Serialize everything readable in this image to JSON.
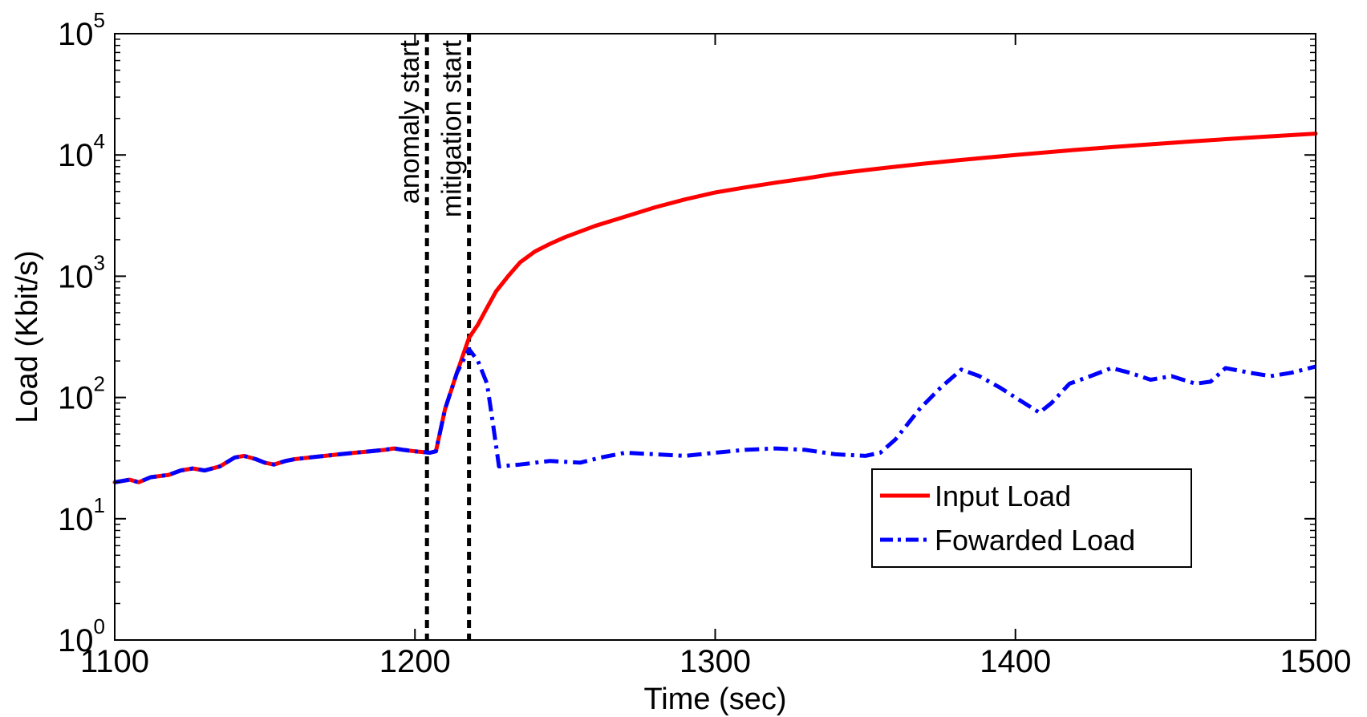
{
  "chart_data": {
    "type": "line",
    "xlabel": "Time (sec)",
    "ylabel": "Load (Kbit/s)",
    "xlim": [
      1100,
      1500
    ],
    "ylim": [
      1,
      100000
    ],
    "yscale": "log",
    "grid": false,
    "legend_position": "lower-right",
    "x_ticks": [
      1100,
      1200,
      1300,
      1400,
      1500
    ],
    "x_tick_labels": [
      "1100",
      "1200",
      "1300",
      "1400",
      "1500"
    ],
    "y_ticks": [
      1,
      10,
      100,
      1000,
      10000,
      100000
    ],
    "y_tick_labels": [
      {
        "base": "10",
        "exp": "0"
      },
      {
        "base": "10",
        "exp": "1"
      },
      {
        "base": "10",
        "exp": "2"
      },
      {
        "base": "10",
        "exp": "3"
      },
      {
        "base": "10",
        "exp": "4"
      },
      {
        "base": "10",
        "exp": "5"
      }
    ],
    "annotations": [
      {
        "label": "anomaly start",
        "x": 1204
      },
      {
        "label": "mitigation start",
        "x": 1218
      }
    ],
    "series": [
      {
        "name": "Input Load",
        "color": "#ff0000",
        "style": "solid",
        "points": [
          [
            1100,
            20
          ],
          [
            1105,
            21
          ],
          [
            1108,
            20
          ],
          [
            1112,
            22
          ],
          [
            1118,
            23
          ],
          [
            1122,
            25
          ],
          [
            1126,
            26
          ],
          [
            1130,
            25
          ],
          [
            1135,
            27
          ],
          [
            1140,
            32
          ],
          [
            1143,
            33
          ],
          [
            1147,
            31
          ],
          [
            1150,
            29
          ],
          [
            1153,
            28
          ],
          [
            1157,
            30
          ],
          [
            1160,
            31
          ],
          [
            1165,
            32
          ],
          [
            1170,
            33
          ],
          [
            1175,
            34
          ],
          [
            1180,
            35
          ],
          [
            1185,
            36
          ],
          [
            1190,
            37
          ],
          [
            1193,
            38
          ],
          [
            1196,
            37
          ],
          [
            1200,
            36
          ],
          [
            1205,
            35
          ],
          [
            1207,
            36
          ],
          [
            1210,
            80
          ],
          [
            1214,
            160
          ],
          [
            1218,
            310
          ],
          [
            1221,
            400
          ],
          [
            1224,
            550
          ],
          [
            1227,
            750
          ],
          [
            1231,
            1000
          ],
          [
            1235,
            1300
          ],
          [
            1240,
            1600
          ],
          [
            1245,
            1850
          ],
          [
            1250,
            2100
          ],
          [
            1260,
            2600
          ],
          [
            1270,
            3100
          ],
          [
            1280,
            3700
          ],
          [
            1290,
            4300
          ],
          [
            1300,
            4900
          ],
          [
            1310,
            5400
          ],
          [
            1320,
            5900
          ],
          [
            1330,
            6400
          ],
          [
            1340,
            7000
          ],
          [
            1350,
            7500
          ],
          [
            1360,
            8000
          ],
          [
            1370,
            8500
          ],
          [
            1380,
            9000
          ],
          [
            1390,
            9500
          ],
          [
            1400,
            10000
          ],
          [
            1420,
            11000
          ],
          [
            1440,
            12000
          ],
          [
            1460,
            13000
          ],
          [
            1480,
            14000
          ],
          [
            1500,
            15000
          ]
        ]
      },
      {
        "name": "Fowarded Load",
        "color": "#0000ff",
        "style": "dashdot",
        "points": [
          [
            1100,
            20
          ],
          [
            1105,
            21
          ],
          [
            1108,
            20
          ],
          [
            1112,
            22
          ],
          [
            1118,
            23
          ],
          [
            1122,
            25
          ],
          [
            1126,
            26
          ],
          [
            1130,
            25
          ],
          [
            1135,
            27
          ],
          [
            1140,
            32
          ],
          [
            1143,
            33
          ],
          [
            1147,
            31
          ],
          [
            1150,
            29
          ],
          [
            1153,
            28
          ],
          [
            1157,
            30
          ],
          [
            1160,
            31
          ],
          [
            1165,
            32
          ],
          [
            1170,
            33
          ],
          [
            1175,
            34
          ],
          [
            1180,
            35
          ],
          [
            1185,
            36
          ],
          [
            1190,
            37
          ],
          [
            1193,
            38
          ],
          [
            1196,
            37
          ],
          [
            1200,
            36
          ],
          [
            1205,
            35
          ],
          [
            1207,
            36
          ],
          [
            1210,
            80
          ],
          [
            1214,
            160
          ],
          [
            1218,
            250
          ],
          [
            1221,
            200
          ],
          [
            1224,
            130
          ],
          [
            1226,
            60
          ],
          [
            1228,
            27
          ],
          [
            1235,
            28
          ],
          [
            1245,
            30
          ],
          [
            1255,
            29
          ],
          [
            1262,
            32
          ],
          [
            1270,
            35
          ],
          [
            1280,
            34
          ],
          [
            1290,
            33
          ],
          [
            1300,
            35
          ],
          [
            1310,
            37
          ],
          [
            1320,
            38
          ],
          [
            1330,
            37
          ],
          [
            1340,
            34
          ],
          [
            1350,
            33
          ],
          [
            1355,
            35
          ],
          [
            1360,
            45
          ],
          [
            1368,
            80
          ],
          [
            1375,
            120
          ],
          [
            1382,
            170
          ],
          [
            1388,
            150
          ],
          [
            1395,
            120
          ],
          [
            1400,
            100
          ],
          [
            1408,
            75
          ],
          [
            1412,
            90
          ],
          [
            1418,
            130
          ],
          [
            1425,
            150
          ],
          [
            1432,
            175
          ],
          [
            1438,
            160
          ],
          [
            1445,
            140
          ],
          [
            1452,
            150
          ],
          [
            1460,
            130
          ],
          [
            1465,
            135
          ],
          [
            1470,
            175
          ],
          [
            1478,
            160
          ],
          [
            1485,
            150
          ],
          [
            1492,
            160
          ],
          [
            1500,
            180
          ]
        ]
      }
    ]
  }
}
